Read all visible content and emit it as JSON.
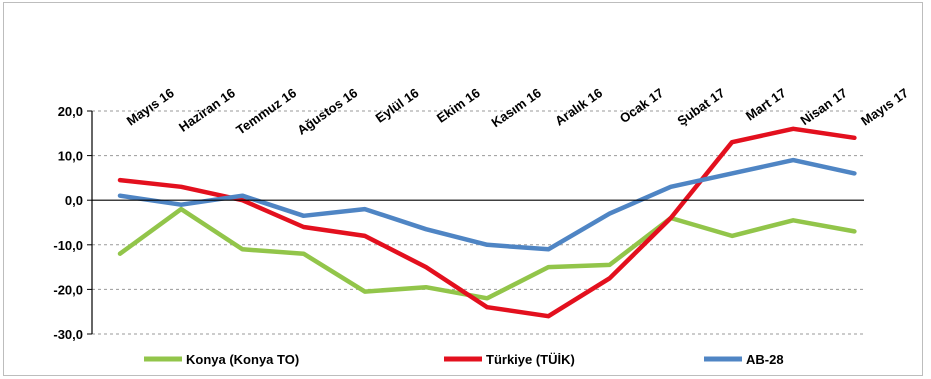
{
  "chart_data": {
    "type": "line",
    "categories": [
      "Mayıs 16",
      "Haziran 16",
      "Temmuz 16",
      "Ağustos 16",
      "Eylül 16",
      "Ekim 16",
      "Kasım 16",
      "Aralık 16",
      "Ocak 17",
      "Şubat 17",
      "Mart 17",
      "Nisan 17",
      "Mayıs 17"
    ],
    "ylim": [
      -30,
      20
    ],
    "yticks": [
      20,
      10,
      0,
      -10,
      -20,
      -30
    ],
    "ytick_labels": [
      "20,0",
      "10,0",
      "0,0",
      "-10,0",
      "-20,0",
      "-30,0"
    ],
    "grid": "horizontal-dashed",
    "legend_position": "bottom",
    "series": [
      {
        "name": "Konya (Konya TO)",
        "color": "#92c54a",
        "values": [
          -12,
          -2,
          -11,
          -12,
          -20.5,
          -19.5,
          -22,
          -15,
          -14.5,
          -4,
          -8,
          -4.5,
          -7
        ]
      },
      {
        "name": "Türkiye (TÜİK)",
        "color": "#e3101e",
        "values": [
          4.5,
          3,
          0,
          -6,
          -8,
          -15,
          -24,
          -26,
          -17.5,
          -4,
          13,
          16,
          14
        ]
      },
      {
        "name": "AB-28",
        "color": "#4f85c4",
        "values": [
          1,
          -1,
          1,
          -3.5,
          -2,
          -6.5,
          -10,
          -11,
          -3,
          3,
          6,
          9,
          6
        ]
      }
    ]
  }
}
